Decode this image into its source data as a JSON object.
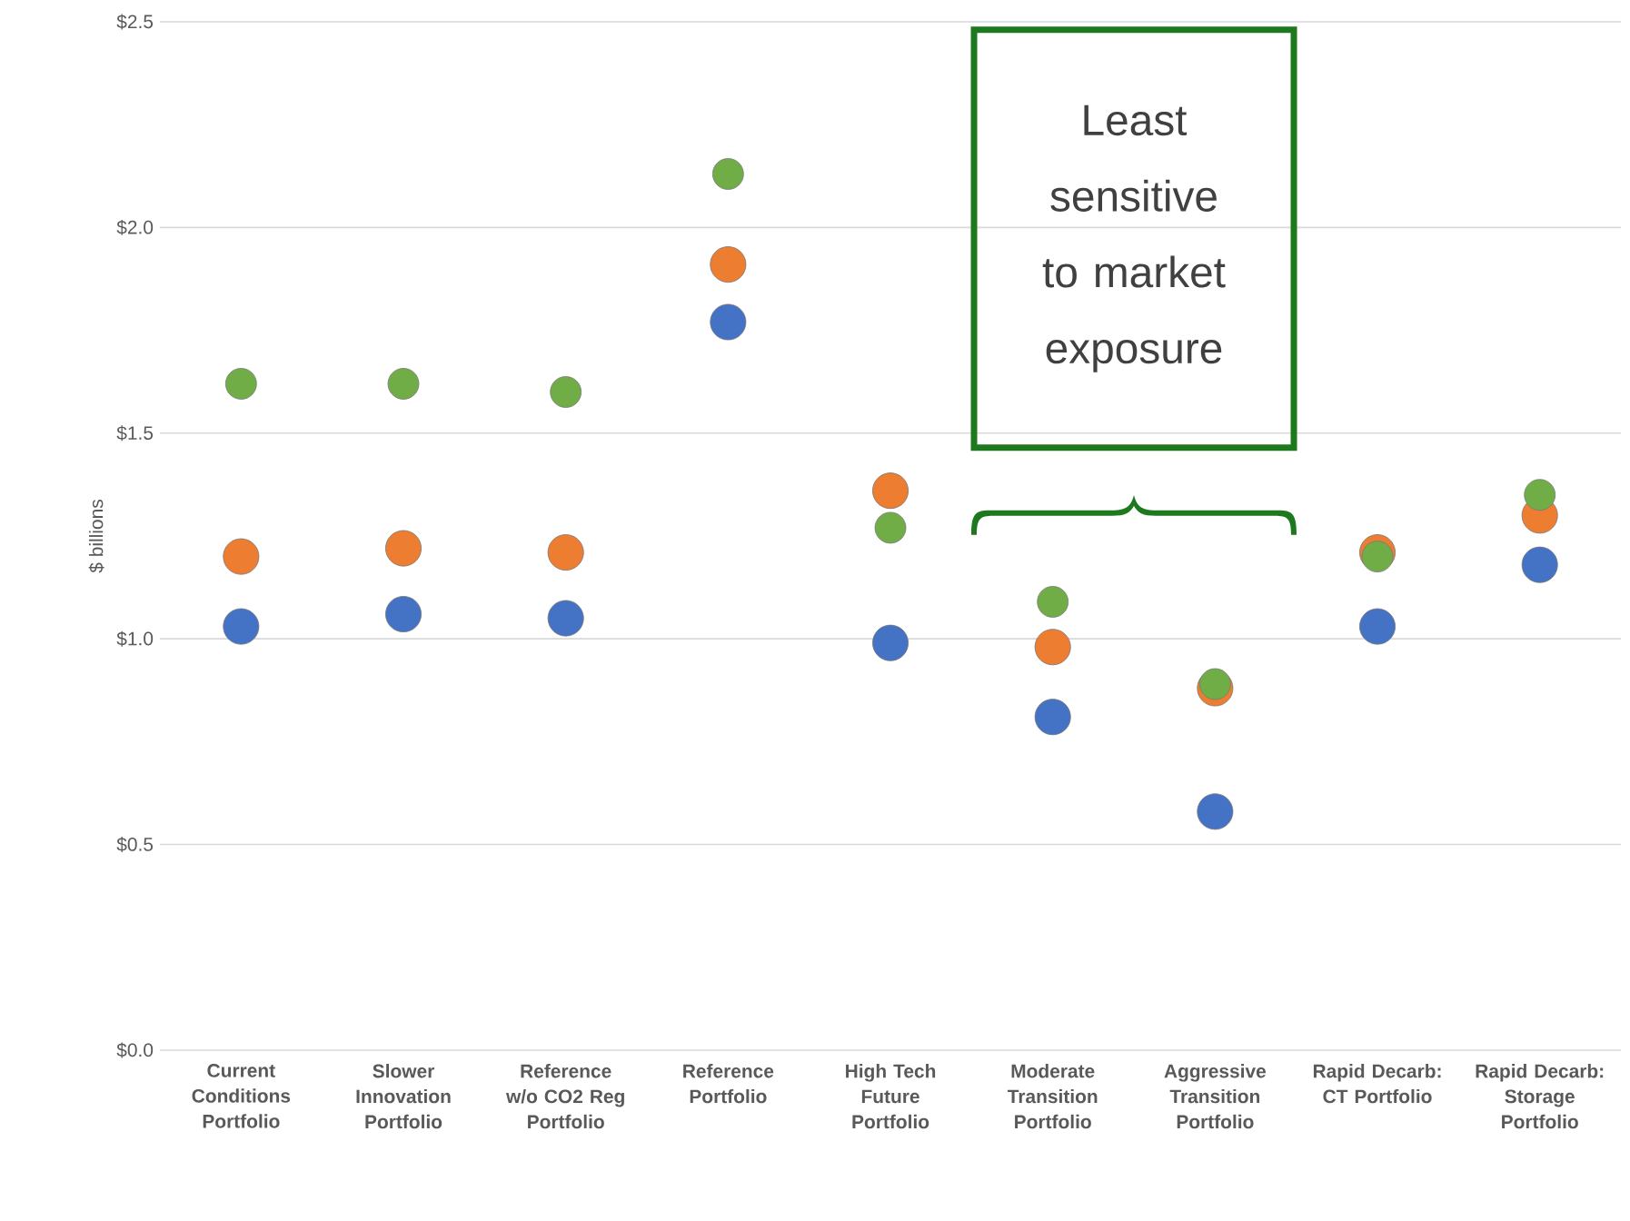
{
  "chart_data": {
    "type": "scatter",
    "ylabel": "$ billions",
    "categories": [
      "Current Conditions Portfolio",
      "Slower Innovation Portfolio",
      "Reference w/o CO2 Reg Portfolio",
      "Reference Portfolio",
      "High Tech Future Portfolio",
      "Moderate Transition Portfolio",
      "Aggressive Transition Portfolio",
      "Rapid Decarb: CT Portfolio",
      "Rapid Decarb: Storage Portfolio"
    ],
    "series": [
      {
        "color": "#4472c4",
        "values": [
          1.03,
          1.06,
          1.05,
          1.77,
          0.99,
          0.81,
          0.58,
          1.03,
          1.18
        ]
      },
      {
        "color": "#ed7d31",
        "values": [
          1.2,
          1.22,
          1.21,
          1.91,
          1.36,
          0.98,
          0.88,
          1.21,
          1.3
        ]
      },
      {
        "color": "#70ad47",
        "values": [
          1.62,
          1.62,
          1.6,
          2.13,
          1.27,
          1.09,
          0.89,
          1.2,
          1.35
        ]
      }
    ],
    "ylim": [
      0,
      2.5
    ],
    "yticks": [
      {
        "value": 0,
        "label": "$0.0"
      },
      {
        "value": 0.5,
        "label": "$0.5"
      },
      {
        "value": 1,
        "label": "$1.0"
      },
      {
        "value": 1.5,
        "label": "$1.5"
      },
      {
        "value": 2,
        "label": "$2.0"
      },
      {
        "value": 2.5,
        "label": "$2.5"
      }
    ],
    "grid": "y",
    "marker": "circle",
    "annotations": [
      "Least sensitive to market exposure"
    ]
  }
}
